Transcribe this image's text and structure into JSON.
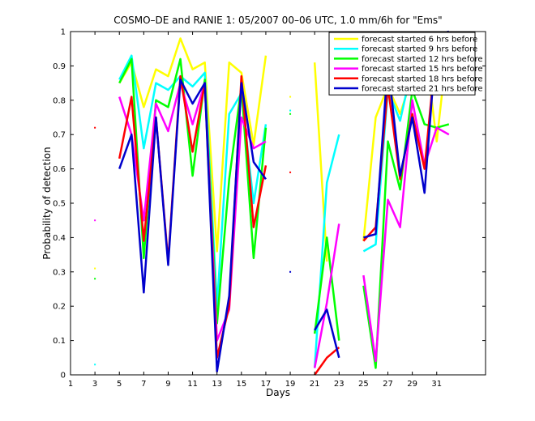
{
  "chart_data": {
    "type": "line",
    "title": "COSMO–DE and RANIE 1: 05/2007 00–06 UTC, 1.0 mm/6h for \"Ems\"",
    "xlabel": "Days",
    "ylabel": "Probability of detection",
    "xlim": [
      1,
      35
    ],
    "ylim": [
      0,
      1
    ],
    "xticks": [
      1,
      3,
      5,
      7,
      9,
      11,
      13,
      15,
      17,
      19,
      21,
      23,
      25,
      27,
      29,
      31
    ],
    "yticks": [
      0,
      0.1,
      0.2,
      0.3,
      0.4,
      0.5,
      0.6,
      0.7,
      0.8,
      0.9,
      1
    ],
    "grid": false,
    "legend_position": "top-right",
    "series": [
      {
        "name": "forecast started 6 hrs before",
        "color": "#ffff00",
        "values": [
          null,
          null,
          0.31,
          null,
          0.85,
          0.91,
          0.78,
          0.89,
          0.87,
          0.98,
          0.89,
          0.91,
          0.36,
          0.91,
          0.88,
          0.67,
          0.93,
          null,
          0.81,
          null,
          0.91,
          0.33,
          null,
          null,
          0.39,
          0.75,
          0.84,
          0.76,
          0.87,
          0.97,
          0.68,
          1.0
        ]
      },
      {
        "name": "forecast started 9 hrs before",
        "color": "#00ffff",
        "values": [
          null,
          null,
          0.03,
          null,
          0.86,
          0.93,
          0.66,
          0.85,
          0.83,
          0.87,
          0.84,
          0.88,
          0.2,
          0.76,
          0.82,
          0.5,
          0.73,
          null,
          0.77,
          null,
          0.02,
          0.56,
          0.7,
          null,
          0.36,
          0.38,
          0.83,
          0.74,
          0.9,
          0.83,
          0.86,
          0.87
        ]
      },
      {
        "name": "forecast started 12 hrs before",
        "color": "#00ff00",
        "values": [
          null,
          null,
          0.28,
          null,
          0.85,
          0.92,
          0.34,
          0.8,
          0.78,
          0.92,
          0.58,
          0.86,
          0.15,
          0.57,
          0.84,
          0.34,
          0.72,
          null,
          0.76,
          null,
          0.12,
          0.4,
          0.1,
          null,
          0.26,
          0.02,
          0.68,
          0.54,
          0.83,
          0.73,
          0.72,
          0.73
        ]
      },
      {
        "name": "forecast started 15 hrs before",
        "color": "#ff00ff",
        "values": [
          null,
          null,
          0.45,
          null,
          0.81,
          0.7,
          0.45,
          0.79,
          0.71,
          0.85,
          0.73,
          0.85,
          0.1,
          0.19,
          0.75,
          0.66,
          0.68,
          null,
          null,
          null,
          0.02,
          0.21,
          0.44,
          null,
          0.29,
          0.04,
          0.51,
          0.43,
          0.8,
          0.61,
          0.72,
          0.7
        ]
      },
      {
        "name": "forecast started 18 hrs before",
        "color": "#ff0000",
        "values": [
          null,
          null,
          0.72,
          null,
          0.63,
          0.81,
          0.39,
          0.75,
          0.33,
          0.87,
          0.65,
          0.85,
          0.05,
          0.2,
          0.87,
          0.43,
          0.61,
          null,
          0.59,
          null,
          0.0,
          0.05,
          0.08,
          null,
          0.39,
          0.43,
          0.84,
          0.57,
          0.76,
          0.6,
          0.97,
          0.97
        ]
      },
      {
        "name": "forecast started 21 hrs before",
        "color": "#0000cc",
        "values": [
          null,
          null,
          null,
          null,
          0.6,
          0.7,
          0.24,
          0.75,
          0.32,
          0.86,
          0.79,
          0.85,
          0.01,
          0.23,
          0.85,
          0.62,
          0.57,
          null,
          0.3,
          null,
          0.13,
          0.19,
          0.05,
          null,
          0.4,
          0.41,
          0.91,
          0.58,
          0.75,
          0.53,
          0.99,
          1.0
        ]
      }
    ]
  }
}
